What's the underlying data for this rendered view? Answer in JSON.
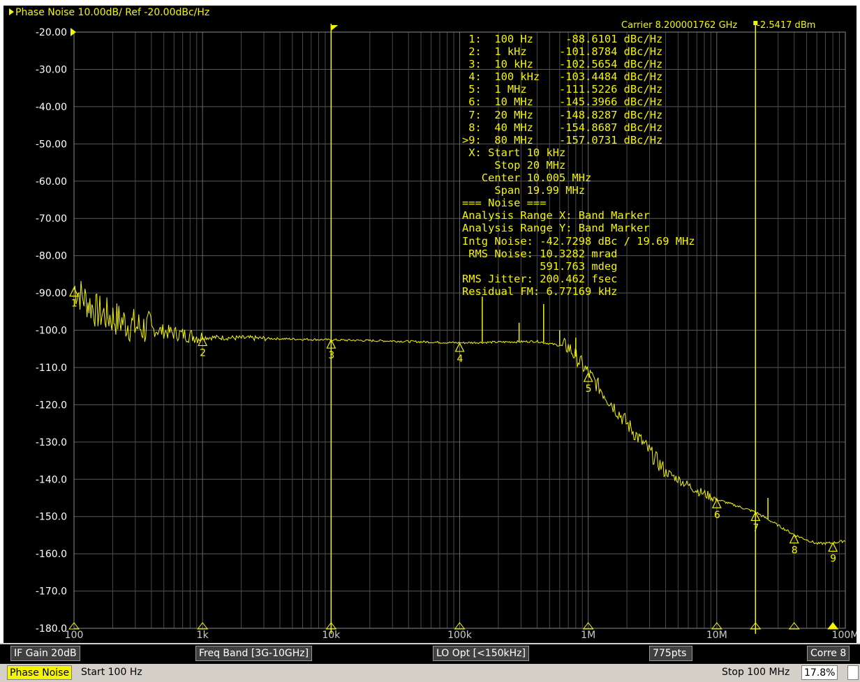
{
  "header": {
    "title": "Phase Noise 10.00dB/ Ref -20.00dBc/Hz",
    "carrier": "Carrier 8.200001762 GHz",
    "carrier_power": "-2.5417 dBm"
  },
  "markers_table": [
    {
      "id": "1:",
      "freq": "100 Hz",
      "value": "-88.6101 dBc/Hz"
    },
    {
      "id": "2:",
      "freq": "1 kHz",
      "value": "-101.8784 dBc/Hz"
    },
    {
      "id": "3:",
      "freq": "10 kHz",
      "value": "-102.5654 dBc/Hz"
    },
    {
      "id": "4:",
      "freq": "100 kHz",
      "value": "-103.4484 dBc/Hz"
    },
    {
      "id": "5:",
      "freq": "1 MHz",
      "value": "-111.5226 dBc/Hz"
    },
    {
      "id": "6:",
      "freq": "10 MHz",
      "value": "-145.3966 dBc/Hz"
    },
    {
      "id": "7:",
      "freq": "20 MHz",
      "value": "-148.8287 dBc/Hz"
    },
    {
      "id": "8:",
      "freq": "40 MHz",
      "value": "-154.8687 dBc/Hz"
    },
    {
      "id": ">9:",
      "freq": "80 MHz",
      "value": "-157.0731 dBc/Hz"
    }
  ],
  "analysis_lines": [
    " X: Start 10 kHz",
    "     Stop 20 MHz",
    "   Center 10.005 MHz",
    "     Span 19.99 MHz",
    "=== Noise ===",
    "Analysis Range X: Band Marker",
    "Analysis Range Y: Band Marker",
    "Intg Noise: -42.7298 dBc / 19.69 MHz",
    " RMS Noise: 10.3282 mrad",
    "            591.763 mdeg",
    "RMS Jitter: 200.462 fsec",
    "Residual FM: 6.77169 kHz"
  ],
  "chart_data": {
    "type": "line",
    "x_scale": "log",
    "xlim": [
      100,
      100000000
    ],
    "ylim": [
      -180,
      -20
    ],
    "grid": true,
    "y_ticks": [
      "-20.00",
      "-30.00",
      "-40.00",
      "-50.00",
      "-60.00",
      "-70.00",
      "-80.00",
      "-90.00",
      "-100.0",
      "-110.0",
      "-120.0",
      "-130.0",
      "-140.0",
      "-150.0",
      "-160.0",
      "-170.0",
      "-180.0"
    ],
    "x_ticks": [
      {
        "x": 100,
        "label": "100"
      },
      {
        "x": 1000,
        "label": "1k"
      },
      {
        "x": 10000,
        "label": "10k"
      },
      {
        "x": 100000,
        "label": "100k"
      },
      {
        "x": 1000000,
        "label": "1M"
      },
      {
        "x": 10000000,
        "label": "10M"
      },
      {
        "x": 100000000,
        "label": "100M"
      }
    ],
    "series": [
      {
        "color": "#f5f500",
        "x": [
          100,
          150,
          300,
          600,
          1000,
          3000,
          10000,
          30000,
          100000,
          200000,
          400000,
          700000,
          1000000,
          2000000,
          4000000,
          7000000,
          10000000,
          20000000,
          40000000,
          60000000,
          80000000,
          100000000
        ],
        "y": [
          -88.6,
          -95,
          -99,
          -100.8,
          -101.9,
          -102.2,
          -102.6,
          -102.9,
          -103.4,
          -103.2,
          -103.0,
          -104.5,
          -111.5,
          -125,
          -138,
          -143,
          -145.4,
          -148.8,
          -154.9,
          -157.3,
          -157.1,
          -156.5
        ]
      }
    ],
    "spurs": [
      {
        "x": 150000,
        "y": -91
      },
      {
        "x": 290000,
        "y": -98
      },
      {
        "x": 450000,
        "y": -93
      },
      {
        "x": 600000,
        "y": -100
      },
      {
        "x": 800000,
        "y": -102
      },
      {
        "x": 25000000,
        "y": -145
      }
    ],
    "markers": [
      {
        "label": "1",
        "x": 100,
        "y": -88.6101
      },
      {
        "label": "2",
        "x": 1000,
        "y": -101.8784
      },
      {
        "label": "3",
        "x": 10000,
        "y": -102.5654
      },
      {
        "label": "4",
        "x": 100000,
        "y": -103.4484
      },
      {
        "label": "5",
        "x": 1000000,
        "y": -111.5226
      },
      {
        "label": "6",
        "x": 10000000,
        "y": -145.3966
      },
      {
        "label": "7",
        "x": 20000000,
        "y": -148.8287
      },
      {
        "label": "8",
        "x": 40000000,
        "y": -154.8687
      },
      {
        "label": "9",
        "x": 80000000,
        "y": -157.0731
      }
    ],
    "band_lines": [
      10000,
      20000000
    ]
  },
  "status_row1": {
    "if_gain": "IF Gain 20dB",
    "freq_band": "Freq Band [3G-10GHz]",
    "lo_opt": "LO Opt [<150kHz]",
    "points": "775pts",
    "corre": "Corre 8"
  },
  "status_row2": {
    "meas": "Phase Noise",
    "start": "Start 100 Hz",
    "stop": "Stop 100 MHz",
    "percent": "17.8%"
  }
}
